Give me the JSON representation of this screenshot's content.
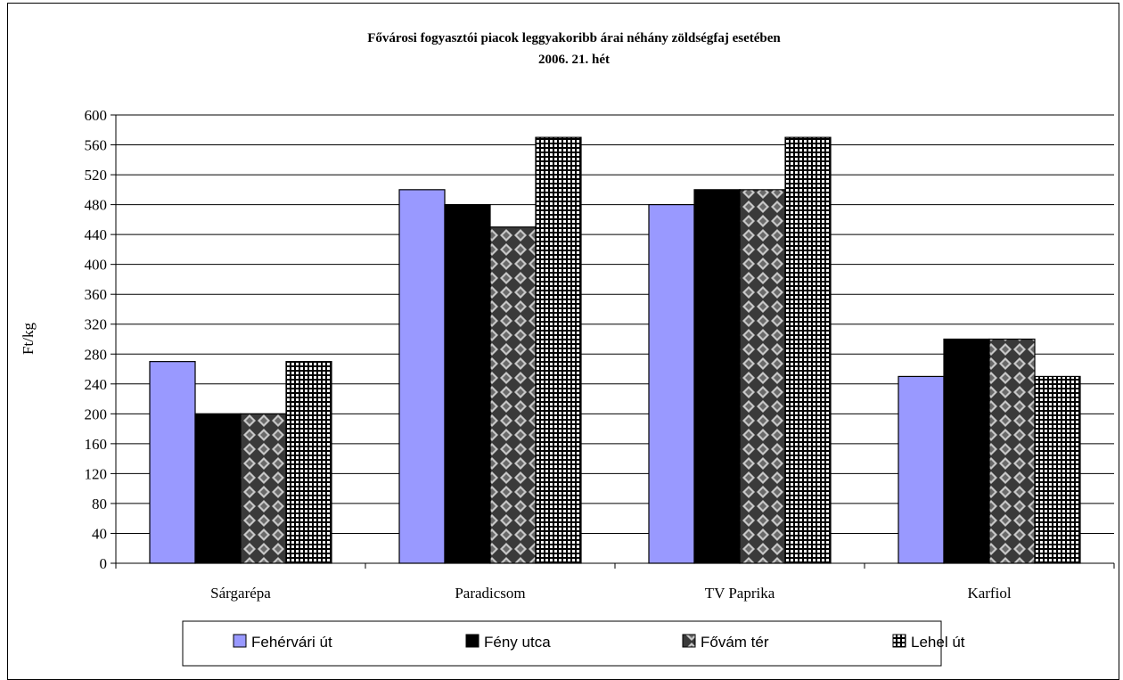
{
  "chart_data": {
    "type": "bar",
    "title": "Fővárosi fogyasztói piacok leggyakoribb árai néhány zöldségfaj esetében",
    "subtitle": "2006. 21. hét",
    "xlabel": "",
    "ylabel": "Ft/kg",
    "ylim": [
      0,
      600
    ],
    "yticks": [
      0,
      40,
      80,
      120,
      160,
      200,
      240,
      280,
      320,
      360,
      400,
      440,
      480,
      520,
      560,
      600
    ],
    "grid": true,
    "legend_position": "bottom",
    "categories": [
      "Sárgarépa",
      "Paradicsom",
      "TV Paprika",
      "Karfiol"
    ],
    "series": [
      {
        "name": "Fehérvári út",
        "values": [
          270,
          500,
          480,
          250
        ],
        "color": "#9999ff",
        "pattern": "solid"
      },
      {
        "name": "Fény utca",
        "values": [
          200,
          480,
          500,
          300
        ],
        "color": "#000000",
        "pattern": "solid"
      },
      {
        "name": "Fővám tér",
        "values": [
          200,
          450,
          500,
          300
        ],
        "color": "#333333",
        "pattern": "diamond-checker"
      },
      {
        "name": "Lehel út",
        "values": [
          270,
          570,
          570,
          250
        ],
        "color": "#000000",
        "pattern": "small-grid"
      }
    ]
  }
}
